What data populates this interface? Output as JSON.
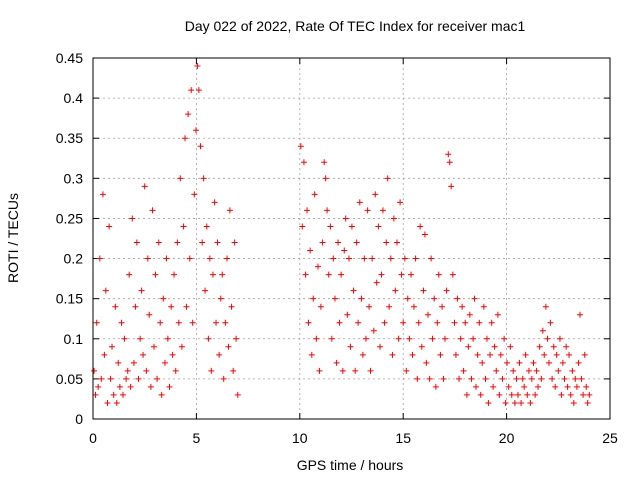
{
  "chart_data": {
    "type": "scatter",
    "title": "Day 022 of 2022, Rate Of TEC Index for receiver mac1",
    "xlabel": "GPS time / hours",
    "ylabel": "ROTI / TECUs",
    "xlim": [
      0,
      25
    ],
    "ylim": [
      0,
      0.45
    ],
    "x_ticks": [
      "0",
      "5",
      "10",
      "15",
      "20",
      "25"
    ],
    "y_ticks": [
      "0",
      "0.05",
      "0.1",
      "0.15",
      "0.2",
      "0.25",
      "0.3",
      "0.35",
      "0.4",
      "0.45"
    ],
    "grid": true,
    "marker": "plus",
    "color": "#ff0000",
    "series": [
      {
        "x": [
          0.05,
          0.12,
          0.18,
          0.25,
          0.33,
          0.4,
          0.48,
          0.55,
          0.62,
          0.7,
          0.78,
          0.85,
          0.92,
          1.0,
          1.08,
          1.15,
          1.22,
          1.3,
          1.38,
          1.45,
          1.52,
          1.6,
          1.68,
          1.75,
          1.82,
          1.9,
          1.98,
          2.05,
          2.12,
          2.2,
          2.28,
          2.35,
          2.42,
          2.5,
          2.58,
          2.65,
          2.72,
          2.8,
          2.88,
          2.95,
          3.02,
          3.1,
          3.18,
          3.25,
          3.32,
          3.4,
          3.48,
          3.55,
          3.62,
          3.7,
          3.78,
          3.85,
          3.92,
          4.0,
          4.08,
          4.15,
          4.22,
          4.3,
          4.38,
          4.45,
          4.52,
          4.6,
          4.68,
          4.75,
          4.82,
          4.9,
          4.98,
          5.05,
          5.12,
          5.2,
          5.28,
          5.35,
          5.42,
          5.5,
          5.58,
          5.65,
          5.72,
          5.8,
          5.88,
          5.95,
          6.02,
          6.1,
          6.18,
          6.25,
          6.32,
          6.4,
          6.48,
          6.55,
          6.62,
          6.7,
          6.78,
          6.85,
          6.92,
          7.0,
          10.05,
          10.12,
          10.2,
          10.28,
          10.35,
          10.42,
          10.5,
          10.58,
          10.65,
          10.72,
          10.8,
          10.88,
          10.95,
          11.02,
          11.1,
          11.18,
          11.25,
          11.32,
          11.4,
          11.48,
          11.55,
          11.62,
          11.7,
          11.78,
          11.85,
          11.92,
          12.0,
          12.08,
          12.15,
          12.22,
          12.3,
          12.38,
          12.45,
          12.52,
          12.6,
          12.68,
          12.75,
          12.82,
          12.9,
          12.98,
          13.05,
          13.12,
          13.2,
          13.28,
          13.35,
          13.42,
          13.5,
          13.58,
          13.65,
          13.72,
          13.8,
          13.88,
          13.95,
          14.02,
          14.1,
          14.18,
          14.25,
          14.32,
          14.4,
          14.48,
          14.55,
          14.62,
          14.7,
          14.78,
          14.85,
          14.92,
          15.0,
          15.08,
          15.15,
          15.22,
          15.3,
          15.38,
          15.45,
          15.52,
          15.6,
          15.68,
          15.75,
          15.82,
          15.9,
          15.98,
          16.05,
          16.12,
          16.2,
          16.28,
          16.35,
          16.42,
          16.5,
          16.58,
          16.65,
          16.72,
          16.8,
          16.88,
          16.95,
          17.02,
          17.1,
          17.18,
          17.25,
          17.32,
          17.4,
          17.48,
          17.55,
          17.62,
          17.7,
          17.78,
          17.85,
          17.92,
          18.0,
          18.08,
          18.15,
          18.22,
          18.3,
          18.38,
          18.45,
          18.52,
          18.6,
          18.68,
          18.75,
          18.82,
          18.9,
          18.98,
          19.05,
          19.12,
          19.2,
          19.28,
          19.35,
          19.42,
          19.5,
          19.58,
          19.65,
          19.72,
          19.8,
          19.88,
          19.95,
          20.02,
          20.1,
          20.18,
          20.25,
          20.32,
          20.4,
          20.48,
          20.55,
          20.62,
          20.7,
          20.78,
          20.85,
          20.92,
          21.0,
          21.08,
          21.15,
          21.22,
          21.3,
          21.38,
          21.45,
          21.52,
          21.6,
          21.68,
          21.75,
          21.82,
          21.9,
          21.98,
          22.05,
          22.12,
          22.2,
          22.28,
          22.35,
          22.42,
          22.5,
          22.58,
          22.65,
          22.72,
          22.8,
          22.88,
          22.95,
          23.02,
          23.1,
          23.18,
          23.25,
          23.32,
          23.4,
          23.48,
          23.55,
          23.62,
          23.7,
          23.78,
          23.85,
          23.92,
          24.0
        ],
        "y": [
          0.06,
          0.03,
          0.12,
          0.04,
          0.2,
          0.05,
          0.28,
          0.08,
          0.16,
          0.02,
          0.24,
          0.05,
          0.09,
          0.03,
          0.14,
          0.02,
          0.07,
          0.04,
          0.12,
          0.03,
          0.1,
          0.05,
          0.06,
          0.18,
          0.04,
          0.25,
          0.07,
          0.14,
          0.22,
          0.05,
          0.1,
          0.16,
          0.08,
          0.29,
          0.06,
          0.2,
          0.13,
          0.04,
          0.26,
          0.09,
          0.18,
          0.05,
          0.22,
          0.12,
          0.03,
          0.15,
          0.07,
          0.2,
          0.1,
          0.04,
          0.14,
          0.08,
          0.18,
          0.06,
          0.22,
          0.12,
          0.3,
          0.09,
          0.24,
          0.35,
          0.14,
          0.38,
          0.2,
          0.41,
          0.12,
          0.28,
          0.36,
          0.44,
          0.41,
          0.34,
          0.22,
          0.3,
          0.16,
          0.24,
          0.1,
          0.2,
          0.06,
          0.18,
          0.27,
          0.12,
          0.22,
          0.08,
          0.15,
          0.18,
          0.05,
          0.12,
          0.2,
          0.09,
          0.26,
          0.14,
          0.06,
          0.22,
          0.1,
          0.03,
          0.34,
          0.24,
          0.32,
          0.18,
          0.26,
          0.12,
          0.21,
          0.08,
          0.15,
          0.28,
          0.1,
          0.19,
          0.06,
          0.14,
          0.22,
          0.32,
          0.3,
          0.26,
          0.18,
          0.24,
          0.1,
          0.2,
          0.15,
          0.07,
          0.22,
          0.12,
          0.18,
          0.06,
          0.21,
          0.25,
          0.13,
          0.2,
          0.09,
          0.24,
          0.16,
          0.06,
          0.22,
          0.12,
          0.27,
          0.15,
          0.08,
          0.2,
          0.1,
          0.26,
          0.14,
          0.06,
          0.2,
          0.11,
          0.28,
          0.17,
          0.24,
          0.09,
          0.18,
          0.26,
          0.12,
          0.22,
          0.3,
          0.14,
          0.2,
          0.08,
          0.25,
          0.16,
          0.22,
          0.1,
          0.27,
          0.18,
          0.12,
          0.2,
          0.06,
          0.15,
          0.1,
          0.18,
          0.08,
          0.14,
          0.2,
          0.05,
          0.12,
          0.24,
          0.09,
          0.16,
          0.23,
          0.07,
          0.13,
          0.05,
          0.2,
          0.1,
          0.15,
          0.04,
          0.12,
          0.18,
          0.08,
          0.14,
          0.05,
          0.1,
          0.16,
          0.33,
          0.32,
          0.29,
          0.18,
          0.12,
          0.08,
          0.15,
          0.05,
          0.1,
          0.14,
          0.06,
          0.12,
          0.03,
          0.09,
          0.13,
          0.05,
          0.1,
          0.15,
          0.04,
          0.08,
          0.12,
          0.03,
          0.07,
          0.14,
          0.05,
          0.1,
          0.02,
          0.08,
          0.12,
          0.04,
          0.09,
          0.06,
          0.13,
          0.03,
          0.08,
          0.05,
          0.1,
          0.02,
          0.07,
          0.04,
          0.09,
          0.03,
          0.06,
          0.02,
          0.05,
          0.03,
          0.07,
          0.02,
          0.05,
          0.04,
          0.08,
          0.03,
          0.06,
          0.02,
          0.05,
          0.07,
          0.03,
          0.06,
          0.04,
          0.09,
          0.05,
          0.11,
          0.08,
          0.14,
          0.1,
          0.07,
          0.12,
          0.05,
          0.09,
          0.04,
          0.08,
          0.06,
          0.1,
          0.03,
          0.07,
          0.05,
          0.09,
          0.04,
          0.08,
          0.03,
          0.06,
          0.02,
          0.05,
          0.04,
          0.07,
          0.13,
          0.05,
          0.03,
          0.08,
          0.04,
          0.02,
          0.03
        ]
      }
    ]
  }
}
